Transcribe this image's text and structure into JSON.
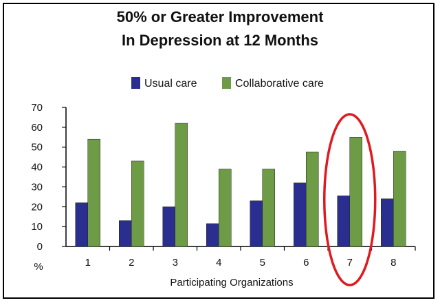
{
  "chart_data": {
    "type": "bar",
    "title_line1": "50% or Greater Improvement",
    "title_line2": "In Depression at 12 Months",
    "xlabel": "Participating Organizations",
    "ylabel": "%",
    "ylim": [
      0,
      70
    ],
    "yticks": [
      "0",
      "10",
      "20",
      "30",
      "40",
      "50",
      "60",
      "70"
    ],
    "categories": [
      "1",
      "2",
      "3",
      "4",
      "5",
      "6",
      "7",
      "8"
    ],
    "series": [
      {
        "name": "Usual care",
        "color": "#2a2f8f",
        "values": [
          22,
          13,
          20,
          11.5,
          23,
          32,
          25.5,
          24
        ]
      },
      {
        "name": "Collaborative care",
        "color": "#6e9b45",
        "values": [
          54,
          43,
          62,
          39,
          39,
          47.5,
          55,
          48
        ]
      }
    ],
    "legend_position": "top",
    "highlight": {
      "category": "7",
      "shape": "ellipse",
      "color": "#e0191f"
    },
    "grid": false
  }
}
